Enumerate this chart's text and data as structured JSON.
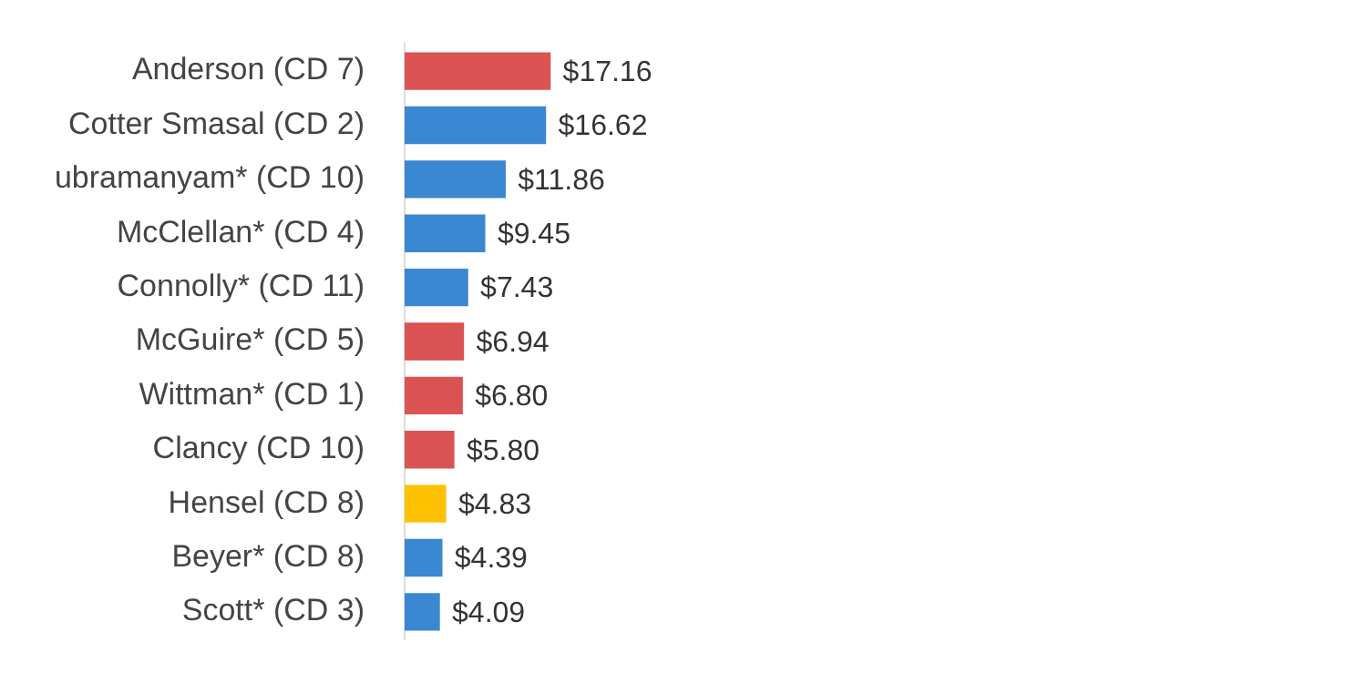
{
  "chart_data": {
    "type": "bar",
    "orientation": "horizontal",
    "categories": [
      "Anderson (CD 7)",
      "Cotter Smasal (CD 2)",
      "ubramanyam* (CD 10)",
      "McClellan* (CD 4)",
      "Connolly* (CD 11)",
      "McGuire* (CD 5)",
      "Wittman* (CD 1)",
      "Clancy (CD 10)",
      "Hensel (CD 8)",
      "Beyer* (CD 8)",
      "Scott* (CD 3)"
    ],
    "values": [
      17.16,
      16.62,
      11.86,
      9.45,
      7.43,
      6.94,
      6.8,
      5.8,
      4.83,
      4.39,
      4.09
    ],
    "colors": [
      "#db5252",
      "#3a88d1",
      "#3a88d1",
      "#3a88d1",
      "#3a88d1",
      "#db5252",
      "#db5252",
      "#db5252",
      "#fdc101",
      "#3a88d1",
      "#3a88d1"
    ],
    "value_labels": [
      "$17.16",
      "$16.62",
      "$11.86",
      "$9.45",
      "$7.43",
      "$6.94",
      "$6.80",
      "$5.80",
      "$4.83",
      "$4.39",
      "$4.09"
    ],
    "legend": false
  }
}
